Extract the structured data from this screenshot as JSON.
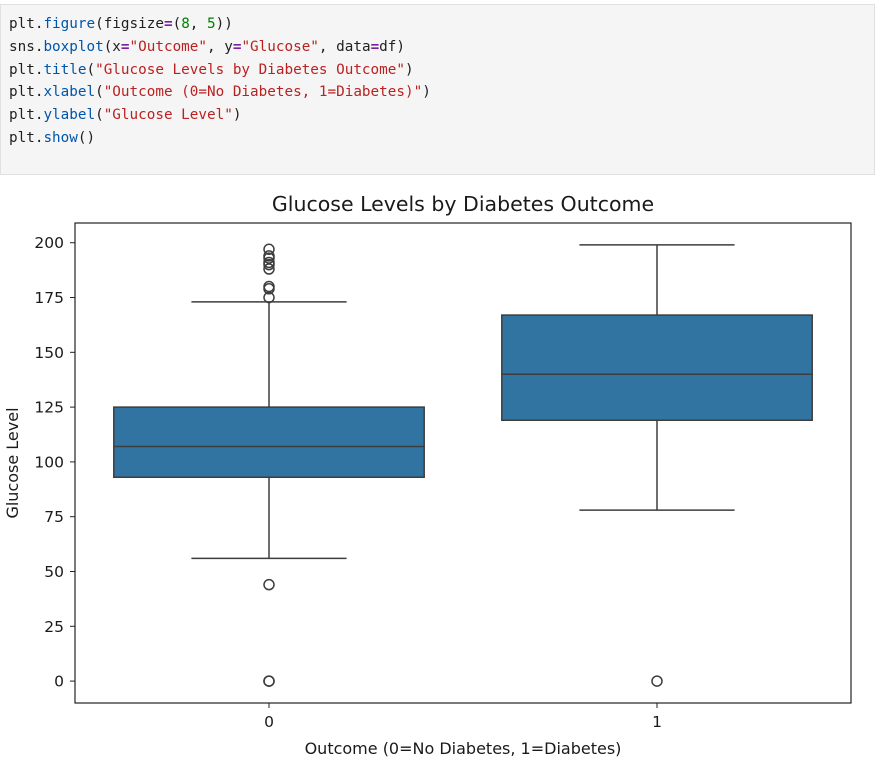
{
  "code_cell": {
    "lines": [
      [
        {
          "t": "plt",
          "c": "n"
        },
        {
          "t": ".",
          "c": "p"
        },
        {
          "t": "figure",
          "c": "f"
        },
        {
          "t": "(figsize",
          "c": "p"
        },
        {
          "t": "=",
          "c": "op"
        },
        {
          "t": "(",
          "c": "p"
        },
        {
          "t": "8",
          "c": "m"
        },
        {
          "t": ", ",
          "c": "p"
        },
        {
          "t": "5",
          "c": "m"
        },
        {
          "t": "))",
          "c": "p"
        }
      ],
      [
        {
          "t": "sns",
          "c": "n"
        },
        {
          "t": ".",
          "c": "p"
        },
        {
          "t": "boxplot",
          "c": "f"
        },
        {
          "t": "(x",
          "c": "p"
        },
        {
          "t": "=",
          "c": "op"
        },
        {
          "t": "\"Outcome\"",
          "c": "s"
        },
        {
          "t": ", y",
          "c": "p"
        },
        {
          "t": "=",
          "c": "op"
        },
        {
          "t": "\"Glucose\"",
          "c": "s"
        },
        {
          "t": ", data",
          "c": "p"
        },
        {
          "t": "=",
          "c": "op"
        },
        {
          "t": "df)",
          "c": "p"
        }
      ],
      [
        {
          "t": "plt",
          "c": "n"
        },
        {
          "t": ".",
          "c": "p"
        },
        {
          "t": "title",
          "c": "f"
        },
        {
          "t": "(",
          "c": "p"
        },
        {
          "t": "\"Glucose Levels by Diabetes Outcome\"",
          "c": "s"
        },
        {
          "t": ")",
          "c": "p"
        }
      ],
      [
        {
          "t": "plt",
          "c": "n"
        },
        {
          "t": ".",
          "c": "p"
        },
        {
          "t": "xlabel",
          "c": "f"
        },
        {
          "t": "(",
          "c": "p"
        },
        {
          "t": "\"Outcome (0=No Diabetes, 1=Diabetes)\"",
          "c": "s"
        },
        {
          "t": ")",
          "c": "p"
        }
      ],
      [
        {
          "t": "plt",
          "c": "n"
        },
        {
          "t": ".",
          "c": "p"
        },
        {
          "t": "ylabel",
          "c": "f"
        },
        {
          "t": "(",
          "c": "p"
        },
        {
          "t": "\"Glucose Level\"",
          "c": "s"
        },
        {
          "t": ")",
          "c": "p"
        }
      ],
      [
        {
          "t": "plt",
          "c": "n"
        },
        {
          "t": ".",
          "c": "p"
        },
        {
          "t": "show",
          "c": "f"
        },
        {
          "t": "()",
          "c": "p"
        }
      ]
    ]
  },
  "chart_data": {
    "type": "boxplot",
    "title": "Glucose Levels by Diabetes Outcome",
    "xlabel": "Outcome (0=No Diabetes, 1=Diabetes)",
    "ylabel": "Glucose Level",
    "categories": [
      "0",
      "1"
    ],
    "ylim": [
      -10,
      209
    ],
    "yticks": [
      0,
      25,
      50,
      75,
      100,
      125,
      150,
      175,
      200
    ],
    "grid": false,
    "box_color": "#3274a1",
    "boxes": [
      {
        "category": "0",
        "whisker_low": 56,
        "q1": 93,
        "median": 107,
        "q3": 125,
        "whisker_high": 173,
        "outliers": [
          0,
          0,
          44,
          175,
          179,
          180,
          188,
          190,
          191,
          193,
          194,
          197
        ]
      },
      {
        "category": "1",
        "whisker_low": 78,
        "q1": 119,
        "median": 140,
        "q3": 167,
        "whisker_high": 199,
        "outliers": [
          0
        ]
      }
    ]
  }
}
